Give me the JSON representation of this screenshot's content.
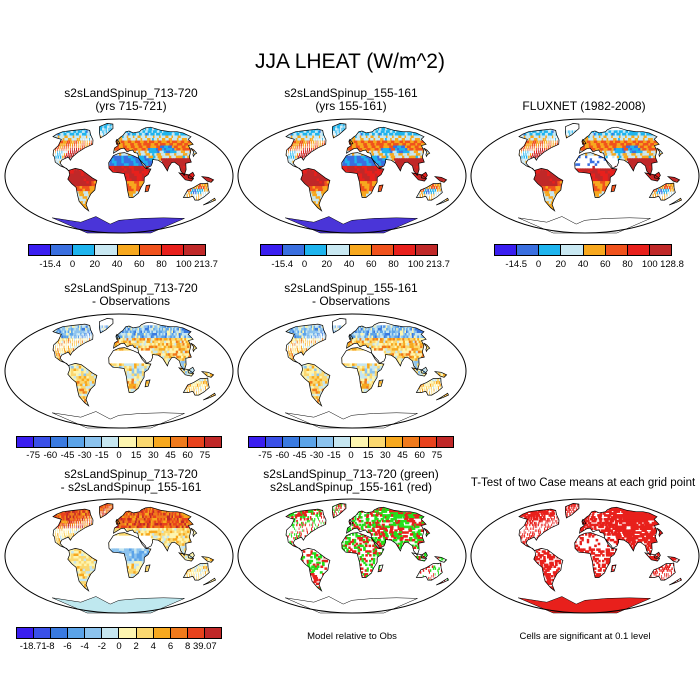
{
  "title": "JJA LHEAT (W/m^2)",
  "panels": [
    {
      "title1": "s2sLandSpinup_713-720",
      "title2": "(yrs 715-721)",
      "style": "full",
      "antarctica": "#4a35d8"
    },
    {
      "title1": "s2sLandSpinup_155-161",
      "title2": "(yrs 155-161)",
      "style": "full",
      "antarctica": "#4a35d8"
    },
    {
      "title1": "FLUXNET (1982-2008)",
      "title2": "",
      "style": "full_sparse",
      "antarctica": ""
    },
    {
      "title1": "s2sLandSpinup_713-720",
      "title2": "- Observations",
      "style": "diff",
      "antarctica": ""
    },
    {
      "title1": "s2sLandSpinup_155-161",
      "title2": "- Observations",
      "style": "diff",
      "antarctica": ""
    },
    {
      "title1": "s2sLandSpinup_713-720",
      "title2": "- s2sLandSpinup_155-161",
      "style": "diff2",
      "antarctica": "#bfe8ef"
    },
    {
      "title1": "s2sLandSpinup_713-720 (green)",
      "title2": "s2sLandSpinup_155-161 (red)",
      "style": "rg",
      "antarctica": ""
    },
    {
      "title1": "T-Test of two Case means at each grid point",
      "title2": "",
      "style": "ttest",
      "antarctica": "#e8201c"
    }
  ],
  "colorbars": [
    {
      "colors": [
        "#3a1ef0",
        "#3a6fe0",
        "#1eb4ee",
        "#c8e8f2",
        "#f7a81e",
        "#f0521c",
        "#e8201c",
        "#c02828"
      ],
      "labels": [
        "-15.4",
        "0",
        "20",
        "40",
        "60",
        "80",
        "100",
        "213.7"
      ]
    },
    {
      "colors": [
        "#3a1ef0",
        "#3a6fe0",
        "#1eb4ee",
        "#c8e8f2",
        "#f7a81e",
        "#f0521c",
        "#e8201c",
        "#c02828"
      ],
      "labels": [
        "-15.4",
        "0",
        "20",
        "40",
        "60",
        "80",
        "100",
        "213.7"
      ]
    },
    {
      "colors": [
        "#3a1ef0",
        "#3a6fe0",
        "#1eb4ee",
        "#c8e8f2",
        "#f7a81e",
        "#f0521c",
        "#e8201c",
        "#c02828"
      ],
      "labels": [
        "-14.5",
        "0",
        "20",
        "40",
        "60",
        "80",
        "100",
        "128.8"
      ]
    },
    {
      "colors": [
        "#3a1ef0",
        "#3a50e8",
        "#3a7ae0",
        "#5ba3e8",
        "#8cc3ee",
        "#c6e6f0",
        "#fdf5b0",
        "#fbd870",
        "#f7a81e",
        "#f07a1c",
        "#e8421c",
        "#c02828"
      ],
      "labels": [
        "-75",
        "-60",
        "-45",
        "-30",
        "-15",
        "0",
        "15",
        "30",
        "45",
        "60",
        "75"
      ]
    },
    {
      "colors": [
        "#3a1ef0",
        "#3a50e8",
        "#3a7ae0",
        "#5ba3e8",
        "#8cc3ee",
        "#c6e6f0",
        "#fdf5b0",
        "#fbd870",
        "#f7a81e",
        "#f07a1c",
        "#e8421c",
        "#c02828"
      ],
      "labels": [
        "-75",
        "-60",
        "-45",
        "-30",
        "-15",
        "0",
        "15",
        "30",
        "45",
        "60",
        "75"
      ]
    },
    {
      "colors": [
        "#3a1ef0",
        "#3a50e8",
        "#3a7ae0",
        "#5ba3e8",
        "#8cc3ee",
        "#c6e6f0",
        "#fdf5b0",
        "#fbd870",
        "#f7a81e",
        "#f07a1c",
        "#e8421c",
        "#c02828"
      ],
      "labels": [
        "-18.71",
        "-8",
        "-6",
        "-4",
        "-2",
        "0",
        "2",
        "4",
        "6",
        "8",
        "39.07"
      ]
    }
  ],
  "notes": {
    "model_relative": "Model relative to Obs",
    "significance": "Cells are significant at 0.1 level"
  }
}
